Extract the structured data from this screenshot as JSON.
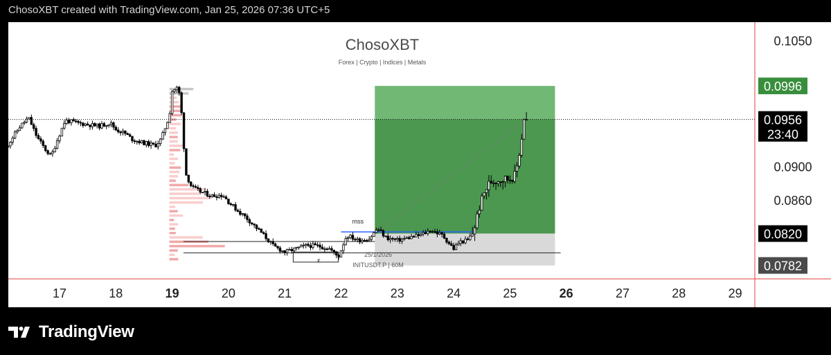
{
  "header": {
    "caption": "ChosoXBT created with TradingView.com, Jan 25, 2026 07:36 UTC+5"
  },
  "footer": {
    "brand": "TradingView",
    "logo_icon": "tradingview-logo-icon"
  },
  "watermark": {
    "title": "ChosoXBT",
    "subtitle": "Forex | Crypto | Indices | Metals"
  },
  "chart_data": {
    "type": "candlestick",
    "symbol_label": "INITUSDT.P | 60M",
    "date_label": "25/1/2026",
    "x_ticks": [
      "17",
      "18",
      "19",
      "20",
      "21",
      "22",
      "23",
      "24",
      "25",
      "26",
      "27",
      "28",
      "29"
    ],
    "x_ticks_bold": [
      "19",
      "26"
    ],
    "y_ticks": [
      "0.1050",
      "0.0900",
      "0.0860"
    ],
    "ylim": [
      0.0766,
      0.1072
    ],
    "price_tags": [
      {
        "label": "0.0996",
        "value": 0.0996,
        "color": "#388e3c"
      },
      {
        "label": "0.0956",
        "value": 0.0956,
        "color": "#000000",
        "sub": "23:40"
      },
      {
        "label": "0.0820",
        "value": 0.082,
        "color": "#000000"
      },
      {
        "label": "0.0782",
        "value": 0.0782,
        "color": "#4a4a4a"
      }
    ],
    "current_price": 0.0956,
    "countdown": "23:40",
    "position": {
      "direction": "long",
      "start_day": 22.6,
      "end_day": 25.8,
      "entry": 0.082,
      "target": 0.0996,
      "stop": 0.0782,
      "profit_color": "#43a047",
      "loss_color": "#d9d9d9"
    },
    "annotations": [
      {
        "text": "mss",
        "day": 22.3,
        "price": 0.0832
      },
      {
        "text": "x",
        "day": 21.6,
        "price": 0.0786
      }
    ],
    "levels": [
      {
        "price": 0.08105,
        "from_day": 19.2,
        "to_day": 22.6
      },
      {
        "price": 0.0797,
        "from_day": 19.2,
        "to_day": 25.9
      },
      {
        "price": 0.0822,
        "from_day": 22.0,
        "to_day": 24.4,
        "color": "#2962ff"
      }
    ],
    "path": [
      [
        16.0,
        0.0918
      ],
      [
        16.3,
        0.0948
      ],
      [
        16.45,
        0.0958
      ],
      [
        16.6,
        0.0935
      ],
      [
        16.75,
        0.092
      ],
      [
        16.85,
        0.0912
      ],
      [
        16.95,
        0.093
      ],
      [
        17.1,
        0.0955
      ],
      [
        17.3,
        0.0952
      ],
      [
        17.5,
        0.095
      ],
      [
        17.7,
        0.0948
      ],
      [
        17.9,
        0.0952
      ],
      [
        18.0,
        0.0944
      ],
      [
        18.15,
        0.094
      ],
      [
        18.3,
        0.0932
      ],
      [
        18.5,
        0.0928
      ],
      [
        18.7,
        0.0925
      ],
      [
        18.8,
        0.0932
      ],
      [
        18.95,
        0.096
      ],
      [
        19.0,
        0.099
      ],
      [
        19.1,
        0.0994
      ],
      [
        19.15,
        0.098
      ],
      [
        19.2,
        0.093
      ],
      [
        19.25,
        0.089
      ],
      [
        19.35,
        0.0875
      ],
      [
        19.5,
        0.087
      ],
      [
        19.7,
        0.0865
      ],
      [
        19.9,
        0.0866
      ],
      [
        20.0,
        0.0858
      ],
      [
        20.15,
        0.0848
      ],
      [
        20.3,
        0.084
      ],
      [
        20.45,
        0.083
      ],
      [
        20.6,
        0.082
      ],
      [
        20.8,
        0.0805
      ],
      [
        21.0,
        0.0798
      ],
      [
        21.2,
        0.0802
      ],
      [
        21.4,
        0.0806
      ],
      [
        21.6,
        0.0805
      ],
      [
        21.8,
        0.0802
      ],
      [
        21.95,
        0.0792
      ],
      [
        22.1,
        0.0818
      ],
      [
        22.3,
        0.0812
      ],
      [
        22.5,
        0.0814
      ],
      [
        22.65,
        0.0826
      ],
      [
        22.8,
        0.0815
      ],
      [
        23.0,
        0.0812
      ],
      [
        23.2,
        0.0815
      ],
      [
        23.4,
        0.0818
      ],
      [
        23.6,
        0.0824
      ],
      [
        23.8,
        0.0818
      ],
      [
        24.0,
        0.0802
      ],
      [
        24.1,
        0.081
      ],
      [
        24.25,
        0.0812
      ],
      [
        24.35,
        0.0822
      ],
      [
        24.45,
        0.085
      ],
      [
        24.55,
        0.087
      ],
      [
        24.65,
        0.0882
      ],
      [
        24.8,
        0.0884
      ],
      [
        25.0,
        0.0886
      ],
      [
        25.1,
        0.089
      ],
      [
        25.2,
        0.093
      ],
      [
        25.28,
        0.0975
      ],
      [
        25.33,
        0.0956
      ]
    ]
  }
}
